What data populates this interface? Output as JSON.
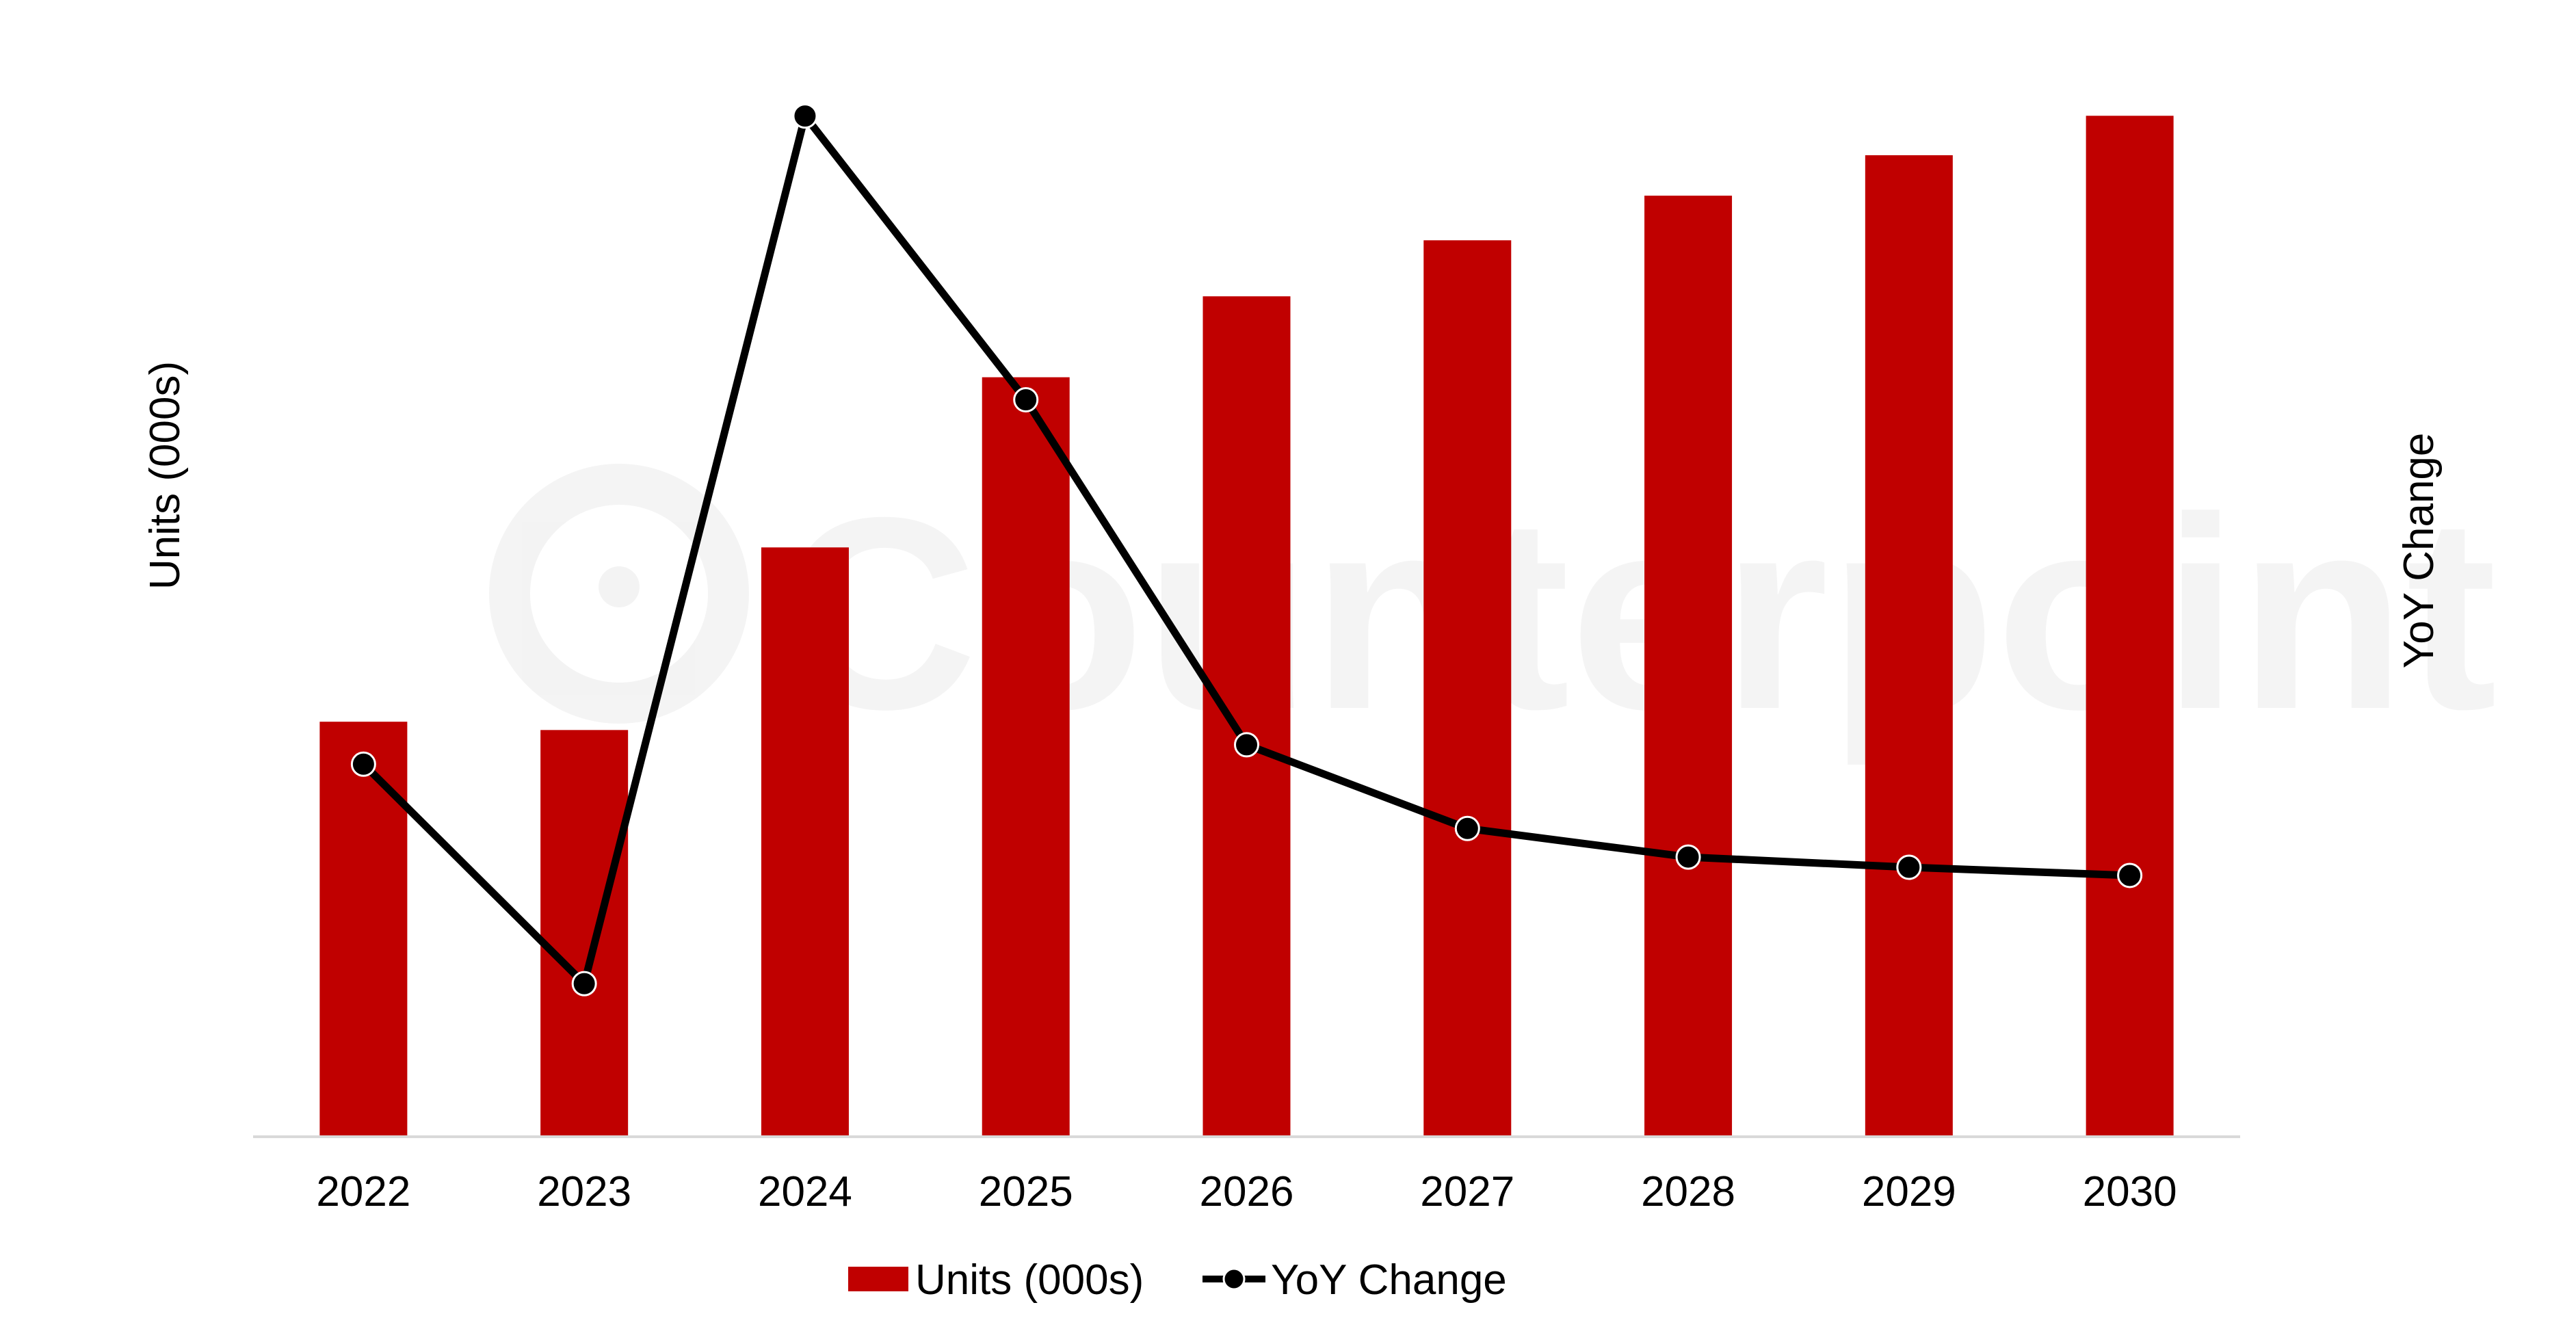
{
  "chart_data": {
    "type": "bar",
    "categories": [
      "2022",
      "2023",
      "2024",
      "2025",
      "2026",
      "2027",
      "2028",
      "2029",
      "2030"
    ],
    "series": [
      {
        "name": "Units (000s)",
        "type": "bar",
        "axis": "left",
        "color": "#C00000",
        "values": [
          40,
          39.2,
          56.8,
          73.2,
          81.0,
          86.4,
          90.7,
          94.6,
          98.4
        ]
      },
      {
        "name": "YoY Change",
        "type": "line",
        "axis": "right",
        "color": "#000000",
        "marker": "circle",
        "values": [
          36.5,
          15.0,
          100.0,
          72.2,
          38.4,
          30.2,
          27.4,
          26.4,
          25.6
        ]
      }
    ],
    "xlabel": "",
    "ylabel": "Units (000s)",
    "y2label": "YoY Change",
    "ylim": [
      0,
      100
    ],
    "y2lim": [
      0,
      105
    ],
    "grid": false,
    "legend": "bottom"
  },
  "watermark": {
    "text": "Counterpoint"
  }
}
